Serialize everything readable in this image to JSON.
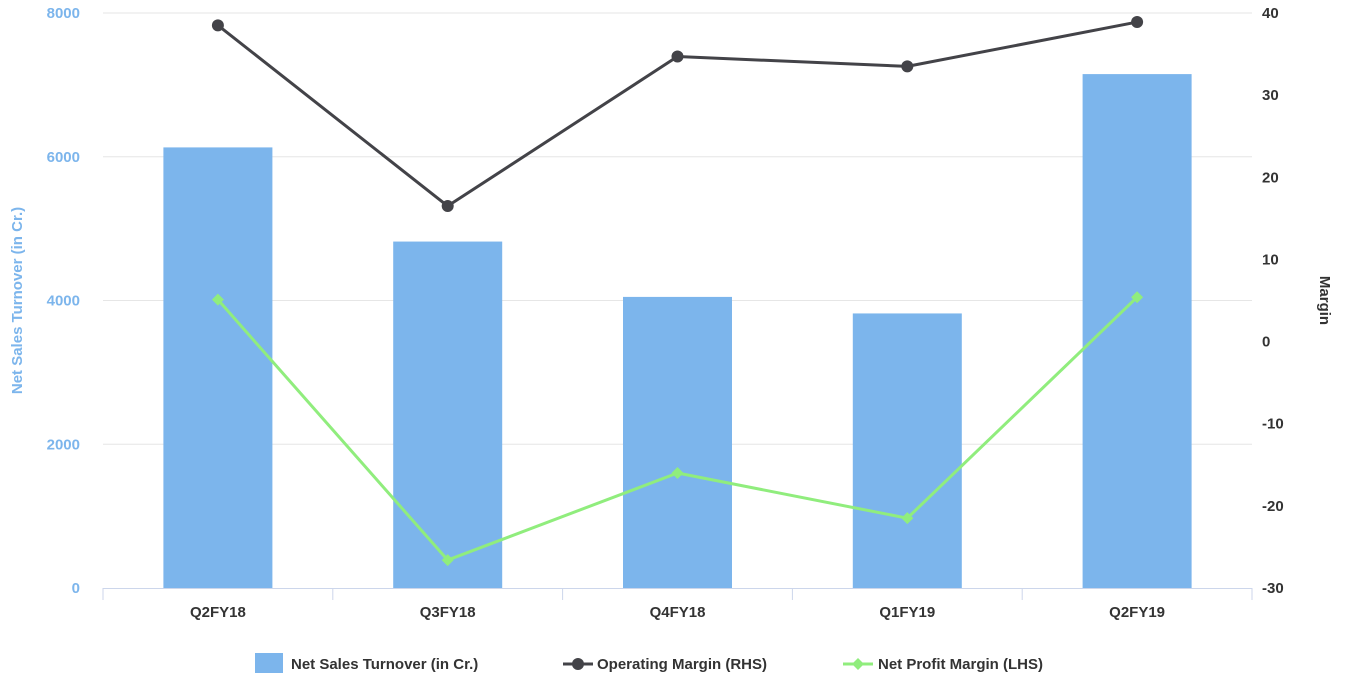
{
  "chart_data": {
    "type": "bar",
    "categories": [
      "Q2FY18",
      "Q3FY18",
      "Q4FY18",
      "Q1FY19",
      "Q2FY19"
    ],
    "y_left": {
      "label": "Net Sales Turnover (in Cr.)",
      "min": 0,
      "max": 8000,
      "ticks": [
        0,
        2000,
        4000,
        6000,
        8000
      ]
    },
    "y_right": {
      "label": "Margin",
      "min": -30,
      "max": 40,
      "ticks": [
        -30,
        -20,
        -10,
        0,
        10,
        20,
        30,
        40
      ]
    },
    "series": [
      {
        "name": "Net Sales Turnover (in Cr.)",
        "type": "bar",
        "axis": "left",
        "color": "#7cb5ec",
        "values": [
          6130,
          4820,
          4050,
          3820,
          7150
        ]
      },
      {
        "name": "Operating Margin (RHS)",
        "type": "line",
        "axis": "right",
        "color": "#434348",
        "marker": "circle",
        "values": [
          38.5,
          16.5,
          34.7,
          33.5,
          38.9
        ]
      },
      {
        "name": "Net Profit Margin (LHS)",
        "type": "line",
        "axis": "right",
        "color": "#90ed7d",
        "marker": "diamond",
        "values": [
          5.1,
          -26.6,
          -16.0,
          -21.5,
          5.4
        ]
      }
    ],
    "grid": true,
    "legend": "bottom-center"
  }
}
